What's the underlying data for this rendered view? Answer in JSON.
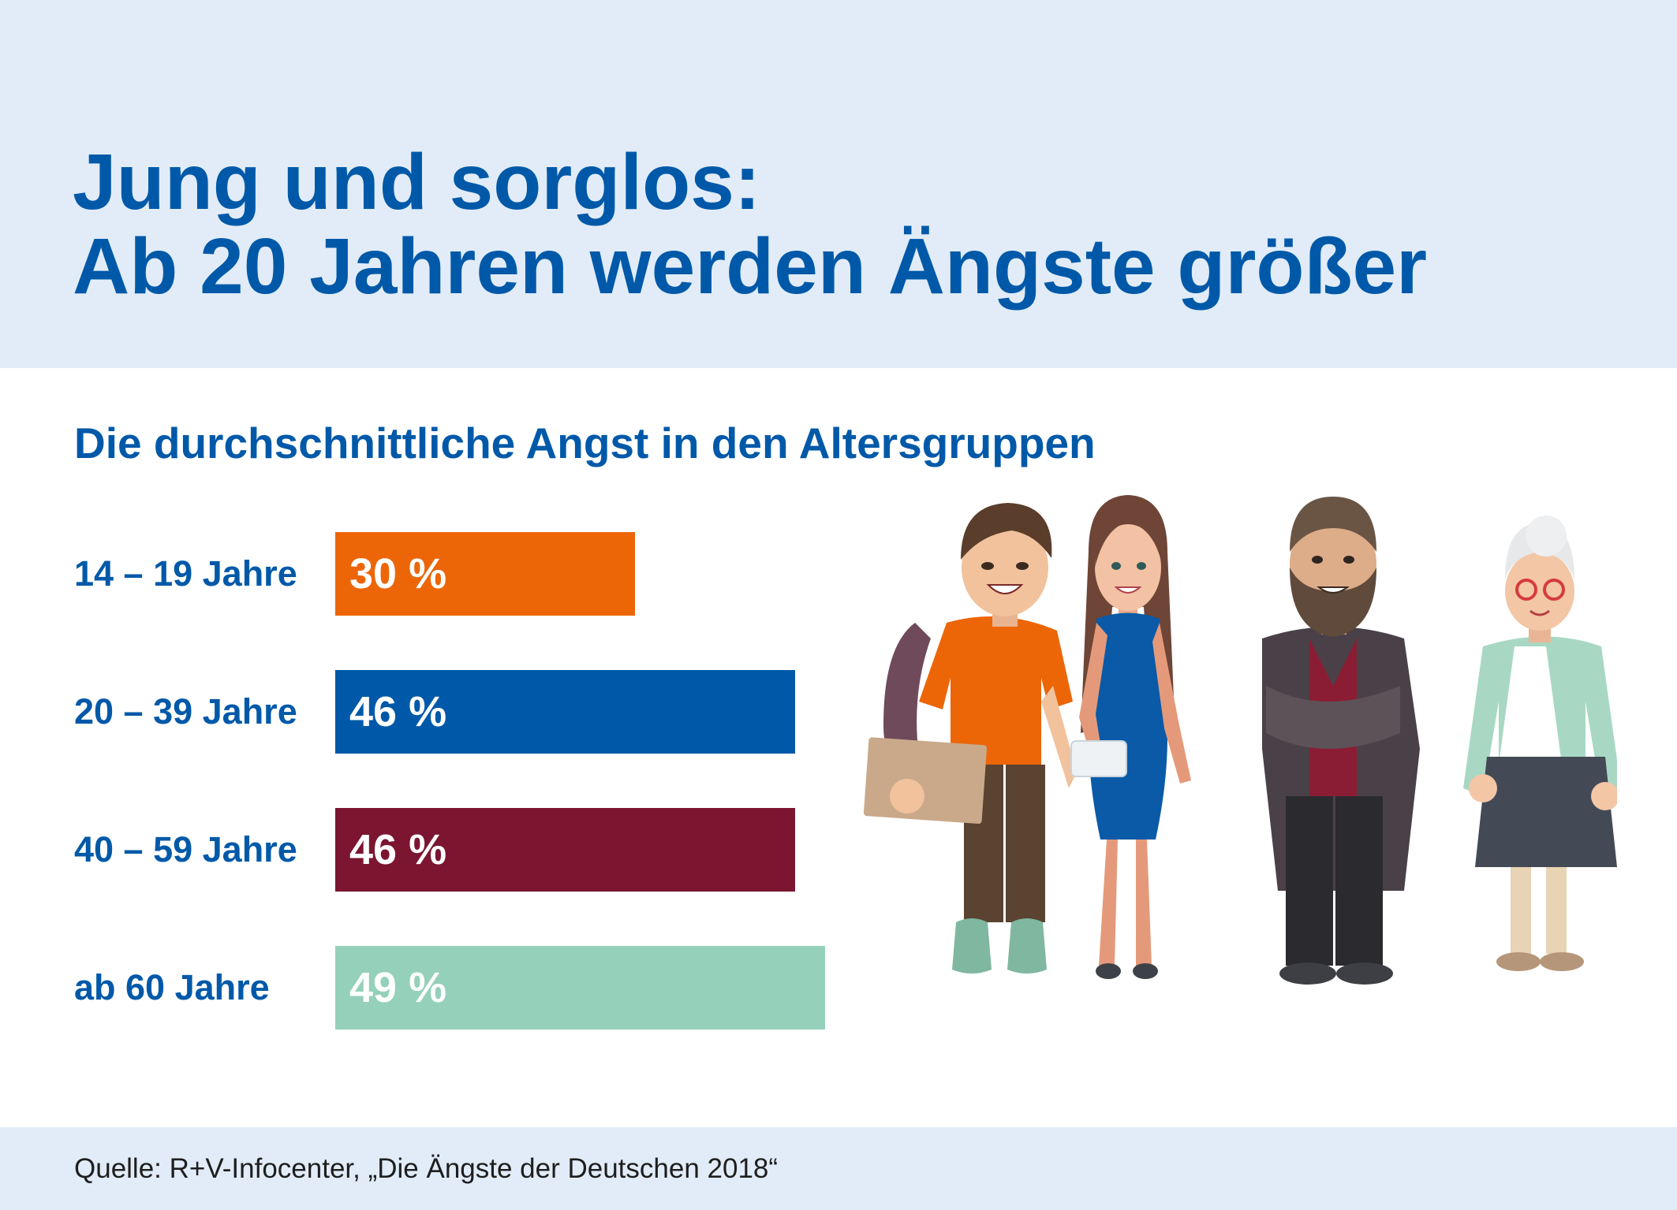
{
  "title": {
    "line1": "Jung und sorglos:",
    "line2": "Ab 20 Jahren werden Ängste größer"
  },
  "subtitle": "Die durchschnittliche Angst in den Altersgruppen",
  "colors": {
    "header_bg": "#e1ecf8",
    "title_text": "#0059a8",
    "orange": "#ec6608",
    "blue": "#0059a8",
    "maroon": "#7b1530",
    "mint": "#94d0ba"
  },
  "chart_data": {
    "type": "bar",
    "orientation": "horizontal",
    "categories": [
      "14 – 19 Jahre",
      "20 – 39 Jahre",
      "40 – 59 Jahre",
      "ab 60 Jahre"
    ],
    "values": [
      30,
      46,
      46,
      49
    ],
    "value_labels": [
      "30 %",
      "46 %",
      "46 %",
      "49 %"
    ],
    "bar_colors": [
      "#ec6608",
      "#0059a8",
      "#7b1530",
      "#94d0ba"
    ],
    "unit": "%",
    "title": "Die durchschnittliche Angst in den Altersgruppen",
    "xlim": [
      0,
      49
    ],
    "grid": false,
    "legend": "none"
  },
  "illustration": {
    "people": [
      "young-man-with-backpack",
      "young-woman-in-blue-dress",
      "bearded-man",
      "elderly-woman-with-glasses"
    ]
  },
  "source": "Quelle: R+V-Infocenter, „Die Ängste der Deutschen 2018“"
}
